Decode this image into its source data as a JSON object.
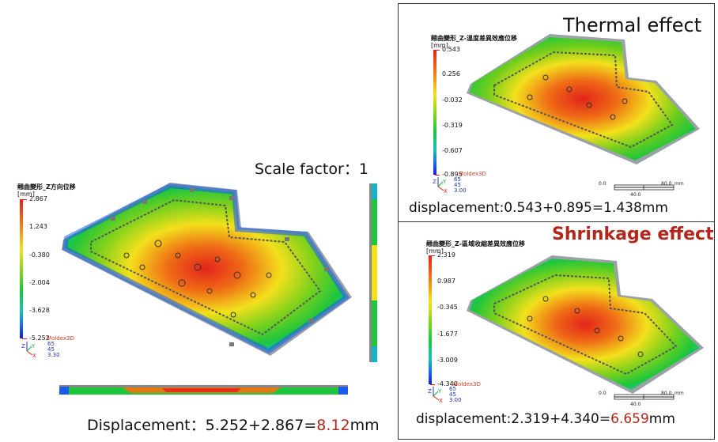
{
  "left": {
    "title": "翹曲變形_Z方向位移",
    "unit": "[mm]",
    "ticks": [
      "2.867",
      "1.243",
      "-0.380",
      "-2.004",
      "-3.628",
      "-5.252"
    ],
    "logo": "Moldex3D",
    "view_numbers": [
      "65",
      "45",
      "3.30"
    ],
    "scale_caption": "Scale factor：1",
    "displacement_label": "Displacement：5.252+2.867=",
    "displacement_value": "8.12",
    "displacement_unit": "mm"
  },
  "top_right": {
    "effect_title": "Thermal effect",
    "title": "翹曲變形_Z-溫度差異效應位移",
    "unit": "[mm]",
    "ticks": [
      "0.543",
      "0.256",
      "-0.032",
      "-0.319",
      "-0.607",
      "-0.895"
    ],
    "logo": "Moldex3D",
    "view_numbers": [
      "65",
      "45",
      "3.00"
    ],
    "scale": [
      "0.0",
      "80.0",
      "40.0",
      "mm"
    ],
    "displacement_label": "displacement:0.543+0.895=1.438mm"
  },
  "bottom_right": {
    "effect_title": "Shrinkage effect",
    "title": "翹曲變形_Z-區域收縮差異效應位移",
    "unit": "[mm]",
    "ticks": [
      "2.319",
      "0.987",
      "-0.345",
      "-1.677",
      "-3.009",
      "-4.340"
    ],
    "logo": "Moldex3D",
    "view_numbers": [
      "65",
      "45",
      "3.00"
    ],
    "scale": [
      "0.0",
      "80.0",
      "40.0",
      "mm"
    ],
    "displacement_label": "displacement:2.319+4.340=",
    "displacement_value": "6.659",
    "displacement_unit": "mm"
  },
  "colors": {
    "accent_red": "#b3261a",
    "hot": "#e8201a",
    "warm": "#f3e21c",
    "mid": "#18c93c",
    "cool": "#1a5bf0"
  }
}
